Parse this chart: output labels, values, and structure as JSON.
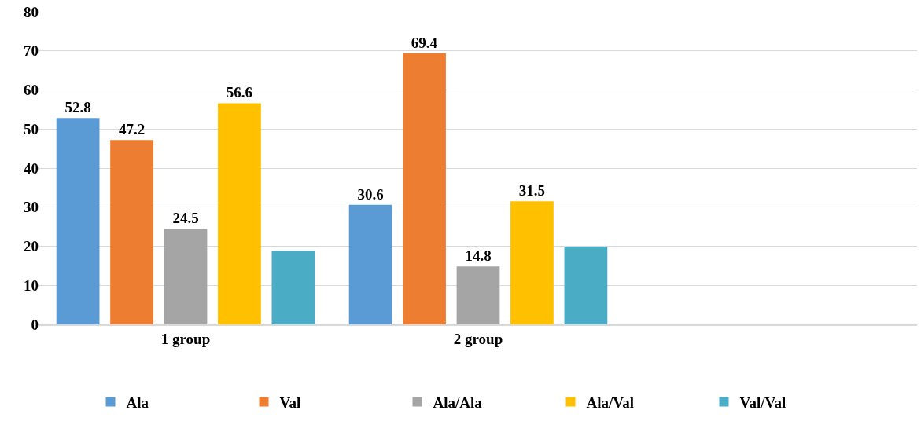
{
  "chart_data": {
    "type": "bar",
    "categories": [
      "1 group",
      "2 group",
      null
    ],
    "series": [
      {
        "name": "Ala",
        "color": "#5b9bd5",
        "values": [
          52.8,
          30.6,
          null
        ],
        "value_labels": [
          "52.8",
          "30.6",
          null
        ]
      },
      {
        "name": "Val",
        "color": "#ed7d31",
        "values": [
          47.2,
          69.4,
          null
        ],
        "value_labels": [
          "47.2",
          "69.4",
          null
        ]
      },
      {
        "name": "Ala/Ala",
        "color": "#a5a5a5",
        "values": [
          24.5,
          14.8,
          null
        ],
        "value_labels": [
          "24.5",
          "14.8",
          null
        ]
      },
      {
        "name": "Ala/Val",
        "color": "#ffc000",
        "values": [
          56.6,
          31.5,
          null
        ],
        "value_labels": [
          "56.6",
          "31.5",
          null
        ]
      },
      {
        "name": "Val/Val",
        "color": "#4bacc6",
        "values": [
          18.8,
          19.9,
          null
        ],
        "value_labels": [
          null,
          null,
          null
        ]
      }
    ],
    "ylim": [
      0,
      80
    ],
    "yticks": [
      0,
      10,
      20,
      30,
      40,
      50,
      60,
      70,
      80
    ],
    "grid": "y",
    "legend": "bottom"
  }
}
